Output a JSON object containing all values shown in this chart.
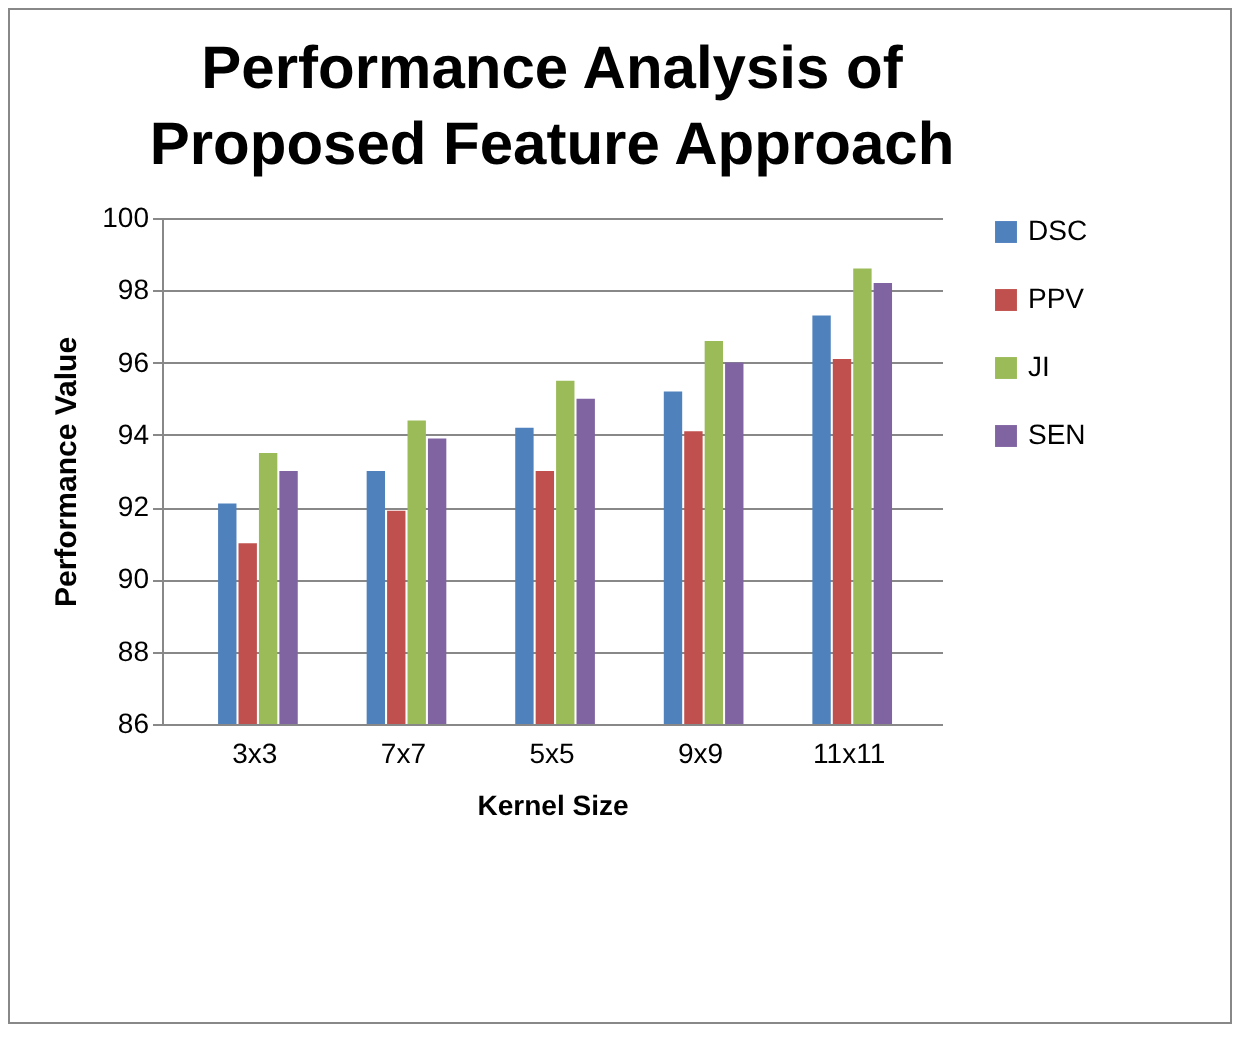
{
  "chart_data": {
    "type": "bar",
    "title": [
      "Performance Analysis of",
      "Proposed Feature Approach"
    ],
    "xlabel": "Kernel Size",
    "ylabel": "Performance Value",
    "categories": [
      "3x3",
      "7x7",
      "5x5",
      "9x9",
      "11x11"
    ],
    "series": [
      {
        "name": "DSC",
        "color": "#4f81bd",
        "values": [
          92.1,
          93.0,
          94.2,
          95.2,
          97.3
        ]
      },
      {
        "name": "PPV",
        "color": "#c0504d",
        "values": [
          91.0,
          91.9,
          93.0,
          94.1,
          96.1
        ]
      },
      {
        "name": "JI",
        "color": "#9bbb59",
        "values": [
          93.5,
          94.4,
          95.5,
          96.6,
          98.6
        ]
      },
      {
        "name": "SEN",
        "color": "#8064a2",
        "values": [
          93.0,
          93.9,
          95.0,
          96.0,
          98.2
        ]
      }
    ],
    "ylim": [
      86,
      100
    ],
    "yticks": [
      86,
      88,
      90,
      92,
      94,
      96,
      98,
      100
    ],
    "grid": "y",
    "legend": "right"
  }
}
